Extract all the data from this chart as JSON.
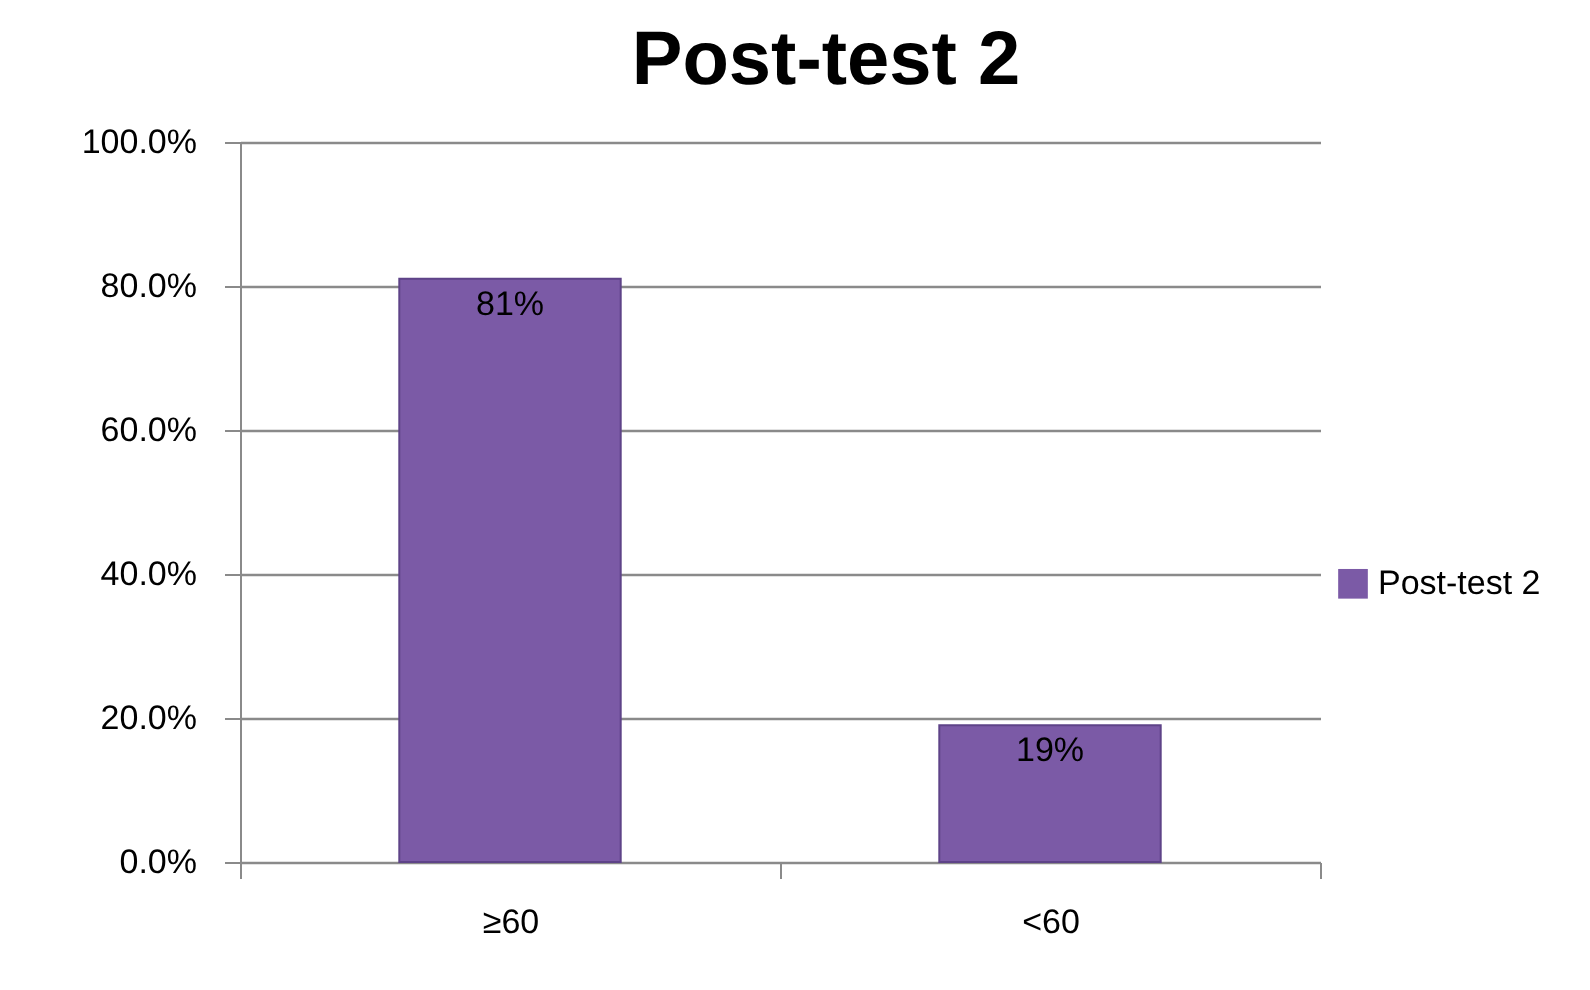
{
  "chart_data": {
    "type": "bar",
    "title": "Post-test 2",
    "categories": [
      "≥60",
      "<60"
    ],
    "series": [
      {
        "name": "Post-test 2",
        "color": "#7b5aa6",
        "values": [
          81,
          19
        ],
        "value_labels": [
          "81%",
          "19%"
        ]
      }
    ],
    "ylim": [
      0,
      100
    ],
    "yticks": [
      {
        "value": 0,
        "label": "0.0%"
      },
      {
        "value": 20,
        "label": "20.0%"
      },
      {
        "value": 40,
        "label": "40.0%"
      },
      {
        "value": 60,
        "label": "60.0%"
      },
      {
        "value": 80,
        "label": "80.0%"
      },
      {
        "value": 100,
        "label": "100.0%"
      }
    ],
    "grid": "y",
    "legend": "right"
  }
}
